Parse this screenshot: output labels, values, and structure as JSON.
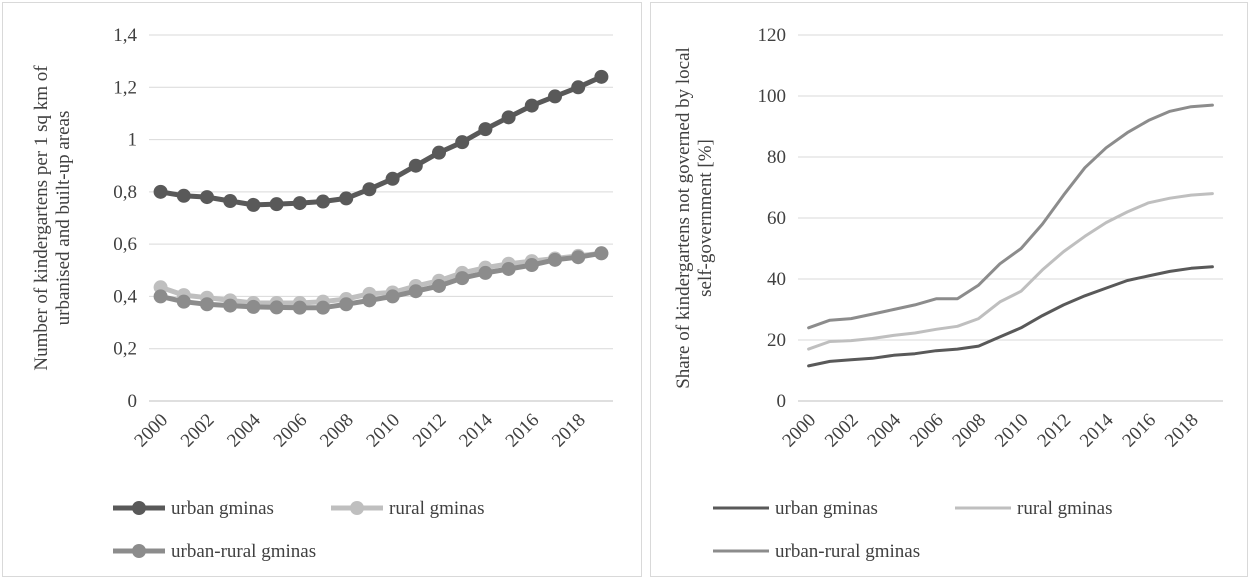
{
  "chart_data": [
    {
      "type": "line",
      "markers": true,
      "ylabel": "Number of kindergartens per 1 sq km of urbanised and built-up areas",
      "xlabel": "",
      "x": [
        2000,
        2001,
        2002,
        2003,
        2004,
        2005,
        2006,
        2007,
        2008,
        2009,
        2010,
        2011,
        2012,
        2013,
        2014,
        2015,
        2016,
        2017,
        2018,
        2019
      ],
      "x_tick_labels": [
        "2000",
        "2002",
        "2004",
        "2006",
        "2008",
        "2010",
        "2012",
        "2014",
        "2016",
        "2018"
      ],
      "y_tick_labels": [
        "0",
        "0,2",
        "0,4",
        "0,6",
        "0,8",
        "1",
        "1,2",
        "1,4"
      ],
      "ylim": [
        0,
        1.4
      ],
      "grid": true,
      "legend_position": "bottom",
      "series": [
        {
          "name": "urban gminas",
          "color": "#595959",
          "values": [
            0.8,
            0.785,
            0.78,
            0.765,
            0.75,
            0.753,
            0.757,
            0.763,
            0.775,
            0.81,
            0.85,
            0.9,
            0.95,
            0.99,
            1.04,
            1.085,
            1.13,
            1.165,
            1.2,
            1.24
          ]
        },
        {
          "name": "rural gminas",
          "color": "#bfbfbf",
          "values": [
            0.435,
            0.405,
            0.395,
            0.385,
            0.375,
            0.375,
            0.375,
            0.38,
            0.39,
            0.41,
            0.415,
            0.44,
            0.46,
            0.49,
            0.51,
            0.525,
            0.535,
            0.545,
            0.555,
            0.565
          ]
        },
        {
          "name": "urban-rural gminas",
          "color": "#8c8c8c",
          "values": [
            0.4,
            0.38,
            0.37,
            0.365,
            0.36,
            0.358,
            0.357,
            0.357,
            0.37,
            0.385,
            0.4,
            0.42,
            0.44,
            0.47,
            0.49,
            0.505,
            0.52,
            0.54,
            0.55,
            0.565
          ]
        }
      ]
    },
    {
      "type": "line",
      "markers": false,
      "ylabel": "Share of kindergartens not governed by local self-government [%]",
      "xlabel": "",
      "x": [
        2000,
        2001,
        2002,
        2003,
        2004,
        2005,
        2006,
        2007,
        2008,
        2009,
        2010,
        2011,
        2012,
        2013,
        2014,
        2015,
        2016,
        2017,
        2018,
        2019
      ],
      "x_tick_labels": [
        "2000",
        "2002",
        "2004",
        "2006",
        "2008",
        "2010",
        "2012",
        "2014",
        "2016",
        "2018"
      ],
      "y_tick_labels": [
        "0",
        "20",
        "40",
        "60",
        "80",
        "100",
        "120"
      ],
      "ylim": [
        0,
        120
      ],
      "grid": true,
      "legend_position": "bottom",
      "series": [
        {
          "name": "urban gminas",
          "color": "#595959",
          "values": [
            11.5,
            13,
            13.5,
            14,
            15,
            15.5,
            16.5,
            17,
            18,
            21,
            24,
            28,
            31.5,
            34.5,
            37,
            39.5,
            41,
            42.5,
            43.5,
            44
          ]
        },
        {
          "name": "rural gminas",
          "color": "#bfbfbf",
          "values": [
            17,
            19.5,
            19.8,
            20.5,
            21.5,
            22.3,
            23.5,
            24.5,
            27,
            32.5,
            36,
            43,
            49,
            54,
            58.5,
            62,
            65,
            66.5,
            67.5,
            68
          ]
        },
        {
          "name": "urban-rural gminas",
          "color": "#8c8c8c",
          "values": [
            24,
            26.5,
            27,
            28.5,
            30,
            31.5,
            33.5,
            33.5,
            38,
            45,
            50,
            58,
            67.5,
            76.5,
            83,
            88,
            92,
            95,
            96.5,
            97
          ]
        }
      ]
    }
  ]
}
